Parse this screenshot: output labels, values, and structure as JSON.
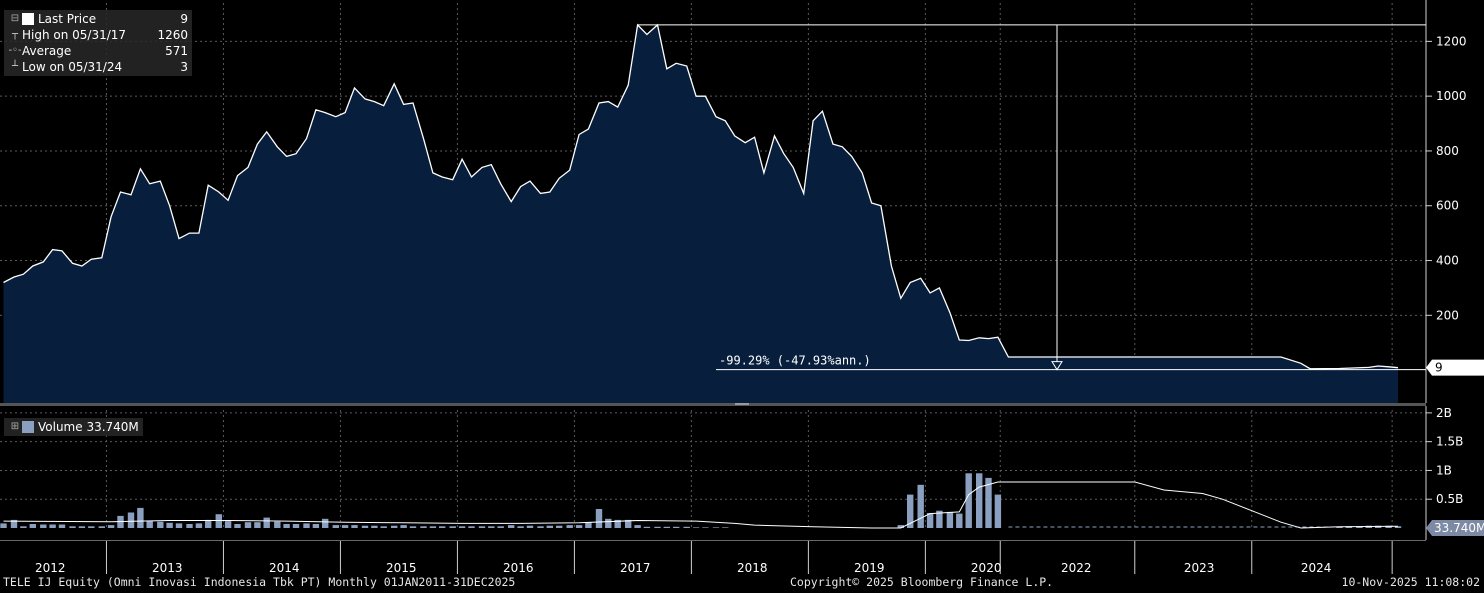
{
  "legend_price": {
    "last_label": "Last Price",
    "last_value": "9",
    "high_label": "High on 05/31/17",
    "high_value": "1260",
    "avg_label": "Average",
    "avg_value": "571",
    "low_label": "Low on 05/31/24",
    "low_value": "3"
  },
  "legend_volume": {
    "label": "Volume 33.740M"
  },
  "footer": {
    "left": "TELE IJ Equity (Omni Inovasi Indonesia Tbk PT) Monthly 01JAN2011-31DEC2025",
    "center": "Copyright© 2025 Bloomberg Finance L.P.",
    "right": "10-Nov-2025 11:08:02"
  },
  "colors": {
    "area_fill": "#071f3d",
    "line": "#ffffff",
    "volume_bar": "#8b9fc0",
    "last_badge": "#ffffff",
    "vol_badge": "#7d8aa4"
  },
  "chart_data": {
    "type": "area",
    "price": {
      "y_ticks": [
        200,
        400,
        600,
        800,
        1000,
        1200
      ],
      "ylim": [
        -120,
        1340
      ],
      "last_value_label": "9",
      "change_annotation": "-99.29% (-47.93%ann.)",
      "points": [
        [
          2011.58,
          320
        ],
        [
          2011.67,
          340
        ],
        [
          2011.75,
          350
        ],
        [
          2011.83,
          380
        ],
        [
          2011.92,
          395
        ],
        [
          2012.0,
          440
        ],
        [
          2012.08,
          435
        ],
        [
          2012.17,
          390
        ],
        [
          2012.25,
          380
        ],
        [
          2012.33,
          405
        ],
        [
          2012.42,
          410
        ],
        [
          2012.5,
          560
        ],
        [
          2012.58,
          650
        ],
        [
          2012.67,
          640
        ],
        [
          2012.75,
          735
        ],
        [
          2012.83,
          680
        ],
        [
          2012.92,
          690
        ],
        [
          2013.0,
          600
        ],
        [
          2013.08,
          480
        ],
        [
          2013.17,
          500
        ],
        [
          2013.25,
          500
        ],
        [
          2013.33,
          675
        ],
        [
          2013.42,
          650
        ],
        [
          2013.5,
          620
        ],
        [
          2013.58,
          710
        ],
        [
          2013.67,
          740
        ],
        [
          2013.75,
          825
        ],
        [
          2013.83,
          870
        ],
        [
          2013.92,
          815
        ],
        [
          2014.0,
          780
        ],
        [
          2014.08,
          790
        ],
        [
          2014.17,
          845
        ],
        [
          2014.25,
          950
        ],
        [
          2014.33,
          940
        ],
        [
          2014.42,
          925
        ],
        [
          2014.5,
          940
        ],
        [
          2014.58,
          1030
        ],
        [
          2014.67,
          990
        ],
        [
          2014.75,
          980
        ],
        [
          2014.83,
          965
        ],
        [
          2014.92,
          1045
        ],
        [
          2015.0,
          970
        ],
        [
          2015.08,
          975
        ],
        [
          2015.17,
          845
        ],
        [
          2015.25,
          720
        ],
        [
          2015.33,
          705
        ],
        [
          2015.42,
          695
        ],
        [
          2015.5,
          770
        ],
        [
          2015.58,
          705
        ],
        [
          2015.67,
          740
        ],
        [
          2015.75,
          750
        ],
        [
          2015.83,
          680
        ],
        [
          2015.92,
          615
        ],
        [
          2016.0,
          670
        ],
        [
          2016.08,
          690
        ],
        [
          2016.17,
          645
        ],
        [
          2016.25,
          650
        ],
        [
          2016.33,
          700
        ],
        [
          2016.42,
          730
        ],
        [
          2016.5,
          860
        ],
        [
          2016.58,
          880
        ],
        [
          2016.67,
          975
        ],
        [
          2016.75,
          980
        ],
        [
          2016.83,
          960
        ],
        [
          2016.92,
          1040
        ],
        [
          2017.0,
          1260
        ],
        [
          2017.08,
          1225
        ],
        [
          2017.17,
          1260
        ],
        [
          2017.25,
          1100
        ],
        [
          2017.33,
          1120
        ],
        [
          2017.42,
          1110
        ],
        [
          2017.5,
          1000
        ],
        [
          2017.58,
          1000
        ],
        [
          2017.67,
          925
        ],
        [
          2017.75,
          910
        ],
        [
          2017.83,
          855
        ],
        [
          2017.92,
          830
        ],
        [
          2018.0,
          850
        ],
        [
          2018.08,
          720
        ],
        [
          2018.17,
          855
        ],
        [
          2018.25,
          790
        ],
        [
          2018.33,
          740
        ],
        [
          2018.42,
          645
        ],
        [
          2018.5,
          910
        ],
        [
          2018.58,
          945
        ],
        [
          2018.67,
          825
        ],
        [
          2018.75,
          815
        ],
        [
          2018.83,
          780
        ],
        [
          2018.92,
          720
        ],
        [
          2019.0,
          610
        ],
        [
          2019.08,
          600
        ],
        [
          2019.17,
          380
        ],
        [
          2019.25,
          262
        ],
        [
          2019.33,
          320
        ],
        [
          2019.42,
          335
        ],
        [
          2019.5,
          282
        ],
        [
          2019.58,
          300
        ],
        [
          2019.67,
          210
        ],
        [
          2019.75,
          110
        ],
        [
          2019.83,
          108
        ],
        [
          2019.92,
          118
        ],
        [
          2020.0,
          115
        ],
        [
          2020.08,
          120
        ],
        [
          2020.17,
          48
        ],
        [
          2021.25,
          48
        ],
        [
          2021.58,
          48
        ],
        [
          2022.25,
          48
        ],
        [
          2022.5,
          48
        ],
        [
          2022.67,
          25
        ],
        [
          2022.75,
          5
        ],
        [
          2023.0,
          6
        ],
        [
          2023.25,
          10
        ],
        [
          2023.33,
          15
        ],
        [
          2023.42,
          12
        ],
        [
          2023.5,
          9
        ]
      ]
    },
    "volume": {
      "y_ticks": [
        "0.5B",
        "1B",
        "1.5B",
        "2B"
      ],
      "tick_values": [
        0.5,
        1.0,
        1.5,
        2.0
      ],
      "ylim": [
        0,
        2.05
      ],
      "unit": "billion shares",
      "last_value_label": "33.740M",
      "bars": [
        [
          2011.58,
          0.08
        ],
        [
          2011.67,
          0.14
        ],
        [
          2011.75,
          0.03
        ],
        [
          2011.83,
          0.07
        ],
        [
          2011.92,
          0.06
        ],
        [
          2012.0,
          0.06
        ],
        [
          2012.08,
          0.06
        ],
        [
          2012.17,
          0.03
        ],
        [
          2012.25,
          0.03
        ],
        [
          2012.33,
          0.03
        ],
        [
          2012.42,
          0.03
        ],
        [
          2012.5,
          0.05
        ],
        [
          2012.58,
          0.21
        ],
        [
          2012.67,
          0.27
        ],
        [
          2012.75,
          0.35
        ],
        [
          2012.83,
          0.12
        ],
        [
          2012.92,
          0.11
        ],
        [
          2013.0,
          0.09
        ],
        [
          2013.08,
          0.08
        ],
        [
          2013.17,
          0.07
        ],
        [
          2013.25,
          0.08
        ],
        [
          2013.33,
          0.14
        ],
        [
          2013.42,
          0.24
        ],
        [
          2013.5,
          0.12
        ],
        [
          2013.58,
          0.07
        ],
        [
          2013.67,
          0.1
        ],
        [
          2013.75,
          0.1
        ],
        [
          2013.83,
          0.18
        ],
        [
          2013.92,
          0.11
        ],
        [
          2014.0,
          0.07
        ],
        [
          2014.08,
          0.07
        ],
        [
          2014.17,
          0.08
        ],
        [
          2014.25,
          0.07
        ],
        [
          2014.33,
          0.16
        ],
        [
          2014.42,
          0.05
        ],
        [
          2014.5,
          0.05
        ],
        [
          2014.58,
          0.05
        ],
        [
          2014.67,
          0.04
        ],
        [
          2014.75,
          0.04
        ],
        [
          2014.83,
          0.03
        ],
        [
          2014.92,
          0.04
        ],
        [
          2015.0,
          0.05
        ],
        [
          2015.08,
          0.03
        ],
        [
          2015.17,
          0.03
        ],
        [
          2015.25,
          0.03
        ],
        [
          2015.33,
          0.03
        ],
        [
          2015.42,
          0.03
        ],
        [
          2015.5,
          0.03
        ],
        [
          2015.58,
          0.03
        ],
        [
          2015.67,
          0.03
        ],
        [
          2015.75,
          0.03
        ],
        [
          2015.83,
          0.03
        ],
        [
          2015.92,
          0.05
        ],
        [
          2016.0,
          0.03
        ],
        [
          2016.08,
          0.04
        ],
        [
          2016.17,
          0.03
        ],
        [
          2016.25,
          0.04
        ],
        [
          2016.33,
          0.04
        ],
        [
          2016.42,
          0.05
        ],
        [
          2016.5,
          0.05
        ],
        [
          2016.58,
          0.1
        ],
        [
          2016.67,
          0.33
        ],
        [
          2016.75,
          0.16
        ],
        [
          2016.83,
          0.14
        ],
        [
          2016.92,
          0.14
        ],
        [
          2017.0,
          0.05
        ],
        [
          2017.08,
          0.02
        ],
        [
          2017.17,
          0.02
        ],
        [
          2017.25,
          0.02
        ],
        [
          2017.33,
          0.02
        ],
        [
          2017.42,
          0.02
        ],
        [
          2017.5,
          0.01
        ],
        [
          2017.58,
          0.01
        ],
        [
          2017.67,
          0.01
        ],
        [
          2017.75,
          0.01
        ],
        [
          2019.25,
          0.05
        ],
        [
          2019.33,
          0.58
        ],
        [
          2019.42,
          0.75
        ],
        [
          2019.5,
          0.26
        ],
        [
          2019.58,
          0.3
        ],
        [
          2019.67,
          0.28
        ],
        [
          2019.75,
          0.25
        ],
        [
          2019.83,
          0.95
        ],
        [
          2019.92,
          0.95
        ],
        [
          2020.0,
          0.87
        ],
        [
          2020.08,
          0.58
        ],
        [
          2023.0,
          0.02
        ],
        [
          2023.08,
          0.03
        ],
        [
          2023.17,
          0.03
        ],
        [
          2023.25,
          0.04
        ],
        [
          2023.33,
          0.04
        ],
        [
          2023.42,
          0.04
        ],
        [
          2023.5,
          0.03
        ]
      ],
      "avg_line": [
        [
          2011.58,
          0.12
        ],
        [
          2012.5,
          0.11
        ],
        [
          2013.0,
          0.13
        ],
        [
          2013.5,
          0.13
        ],
        [
          2014.0,
          0.12
        ],
        [
          2014.5,
          0.1
        ],
        [
          2015.0,
          0.09
        ],
        [
          2015.5,
          0.08
        ],
        [
          2016.0,
          0.08
        ],
        [
          2016.5,
          0.09
        ],
        [
          2017.0,
          0.13
        ],
        [
          2017.5,
          0.12
        ],
        [
          2017.83,
          0.08
        ],
        [
          2018.0,
          0.05
        ],
        [
          2018.5,
          0.02
        ],
        [
          2019.0,
          0.0
        ],
        [
          2019.25,
          0.0
        ],
        [
          2019.5,
          0.25
        ],
        [
          2019.75,
          0.28
        ],
        [
          2019.83,
          0.58
        ],
        [
          2019.92,
          0.71
        ],
        [
          2020.08,
          0.8
        ],
        [
          2021.25,
          0.8
        ],
        [
          2021.5,
          0.66
        ],
        [
          2021.83,
          0.6
        ],
        [
          2022.0,
          0.5
        ],
        [
          2022.25,
          0.3
        ],
        [
          2022.5,
          0.1
        ],
        [
          2022.67,
          0.0
        ],
        [
          2023.0,
          0.02
        ],
        [
          2023.5,
          0.03
        ]
      ]
    },
    "x_labels": [
      {
        "label": "2012",
        "x": 2011.98
      },
      {
        "label": "2013",
        "x": 2012.98
      },
      {
        "label": "2014",
        "x": 2013.98
      },
      {
        "label": "2015",
        "x": 2014.98
      },
      {
        "label": "2016",
        "x": 2015.98
      },
      {
        "label": "2017",
        "x": 2016.98
      },
      {
        "label": "2018",
        "x": 2017.98
      },
      {
        "label": "2019",
        "x": 2018.98
      },
      {
        "label": "2020",
        "x": 2019.98
      },
      {
        "label": "2022",
        "x": 2020.75
      },
      {
        "label": "2023",
        "x": 2021.8
      },
      {
        "label": "2024",
        "x": 2022.8
      }
    ],
    "x_separators": [
      2011.46,
      2012.46,
      2013.46,
      2014.46,
      2015.46,
      2016.46,
      2017.46,
      2018.46,
      2019.46,
      2020.1,
      2021.25,
      2022.25,
      2023.45
    ],
    "xlim": [
      2011.55,
      2023.5
    ]
  }
}
